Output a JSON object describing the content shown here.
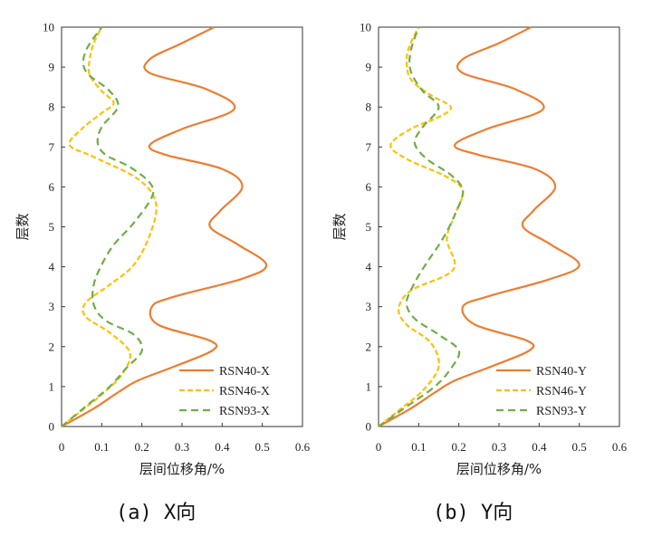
{
  "colors": {
    "RSN40": "#ed7d31",
    "RSN46": "#ffc000",
    "RSN93": "#70ad47",
    "axis": "#333333"
  },
  "captions": {
    "a": "(a) X向",
    "b": "(b) Y向"
  },
  "chart_data": [
    {
      "type": "line",
      "panel": "a",
      "xlabel": "层间位移角/%",
      "ylabel": "层数",
      "xlim": [
        0,
        0.6
      ],
      "ylim": [
        0,
        10
      ],
      "xticks": [
        0,
        0.1,
        0.2,
        0.3,
        0.4,
        0.5,
        0.6
      ],
      "yticks": [
        0,
        1,
        2,
        3,
        4,
        5,
        6,
        7,
        8,
        9,
        10
      ],
      "grid": false,
      "legend": "bottom-right",
      "series": [
        {
          "name": "RSN40-X",
          "color_key": "RSN40",
          "dash": "solid",
          "points": [
            [
              0,
              0
            ],
            [
              0.08,
              0.45
            ],
            [
              0.14,
              0.85
            ],
            [
              0.19,
              1.15
            ],
            [
              0.28,
              1.5
            ],
            [
              0.375,
              1.9
            ],
            [
              0.37,
              2.15
            ],
            [
              0.24,
              2.55
            ],
            [
              0.225,
              3.0
            ],
            [
              0.28,
              3.25
            ],
            [
              0.45,
              3.7
            ],
            [
              0.51,
              4.05
            ],
            [
              0.44,
              4.55
            ],
            [
              0.37,
              5.0
            ],
            [
              0.395,
              5.4
            ],
            [
              0.45,
              6.0
            ],
            [
              0.4,
              6.45
            ],
            [
              0.26,
              6.8
            ],
            [
              0.22,
              7.05
            ],
            [
              0.3,
              7.45
            ],
            [
              0.43,
              7.95
            ],
            [
              0.36,
              8.45
            ],
            [
              0.22,
              8.85
            ],
            [
              0.22,
              9.2
            ],
            [
              0.3,
              9.6
            ],
            [
              0.38,
              10.0
            ]
          ]
        },
        {
          "name": "RSN46-X",
          "color_key": "RSN46",
          "dash": "dash",
          "points": [
            [
              0,
              0
            ],
            [
              0.05,
              0.4
            ],
            [
              0.1,
              0.8
            ],
            [
              0.15,
              1.3
            ],
            [
              0.17,
              1.85
            ],
            [
              0.12,
              2.35
            ],
            [
              0.06,
              2.75
            ],
            [
              0.06,
              3.1
            ],
            [
              0.12,
              3.55
            ],
            [
              0.18,
              4.05
            ],
            [
              0.22,
              4.8
            ],
            [
              0.235,
              5.6
            ],
            [
              0.19,
              6.2
            ],
            [
              0.08,
              6.75
            ],
            [
              0.02,
              7.05
            ],
            [
              0.05,
              7.45
            ],
            [
              0.1,
              7.85
            ],
            [
              0.13,
              8.1
            ],
            [
              0.1,
              8.4
            ],
            [
              0.07,
              8.8
            ],
            [
              0.07,
              9.2
            ],
            [
              0.08,
              9.6
            ],
            [
              0.1,
              10.0
            ]
          ]
        },
        {
          "name": "RSN93-X",
          "color_key": "RSN93",
          "dash": "longdash",
          "points": [
            [
              0,
              0
            ],
            [
              0.06,
              0.5
            ],
            [
              0.12,
              1.0
            ],
            [
              0.16,
              1.45
            ],
            [
              0.2,
              1.9
            ],
            [
              0.18,
              2.3
            ],
            [
              0.11,
              2.65
            ],
            [
              0.08,
              3.05
            ],
            [
              0.08,
              3.55
            ],
            [
              0.1,
              4.05
            ],
            [
              0.13,
              4.55
            ],
            [
              0.18,
              5.1
            ],
            [
              0.225,
              5.75
            ],
            [
              0.22,
              6.1
            ],
            [
              0.17,
              6.5
            ],
            [
              0.11,
              6.8
            ],
            [
              0.09,
              7.1
            ],
            [
              0.1,
              7.5
            ],
            [
              0.14,
              8.0
            ],
            [
              0.12,
              8.4
            ],
            [
              0.06,
              8.9
            ],
            [
              0.06,
              9.4
            ],
            [
              0.1,
              10.0
            ]
          ]
        }
      ]
    },
    {
      "type": "line",
      "panel": "b",
      "xlabel": "层间位移角/%",
      "ylabel": "层数",
      "xlim": [
        0,
        0.6
      ],
      "ylim": [
        0,
        10
      ],
      "xticks": [
        0,
        0.1,
        0.2,
        0.3,
        0.4,
        0.5,
        0.6
      ],
      "yticks": [
        0,
        1,
        2,
        3,
        4,
        5,
        6,
        7,
        8,
        9,
        10
      ],
      "grid": false,
      "legend": "bottom-right",
      "series": [
        {
          "name": "RSN40-Y",
          "color_key": "RSN40",
          "dash": "solid",
          "points": [
            [
              0,
              0
            ],
            [
              0.08,
              0.45
            ],
            [
              0.14,
              0.85
            ],
            [
              0.19,
              1.15
            ],
            [
              0.28,
              1.5
            ],
            [
              0.375,
              1.9
            ],
            [
              0.37,
              2.15
            ],
            [
              0.24,
              2.55
            ],
            [
              0.21,
              3.0
            ],
            [
              0.27,
              3.25
            ],
            [
              0.43,
              3.7
            ],
            [
              0.5,
              4.05
            ],
            [
              0.43,
              4.55
            ],
            [
              0.36,
              5.0
            ],
            [
              0.385,
              5.4
            ],
            [
              0.44,
              6.0
            ],
            [
              0.39,
              6.45
            ],
            [
              0.25,
              6.8
            ],
            [
              0.19,
              7.05
            ],
            [
              0.27,
              7.45
            ],
            [
              0.41,
              7.95
            ],
            [
              0.34,
              8.45
            ],
            [
              0.21,
              8.85
            ],
            [
              0.21,
              9.2
            ],
            [
              0.3,
              9.6
            ],
            [
              0.38,
              10.0
            ]
          ]
        },
        {
          "name": "RSN46-Y",
          "color_key": "RSN46",
          "dash": "dash",
          "points": [
            [
              0,
              0
            ],
            [
              0.05,
              0.4
            ],
            [
              0.11,
              0.9
            ],
            [
              0.15,
              1.5
            ],
            [
              0.13,
              2.1
            ],
            [
              0.07,
              2.55
            ],
            [
              0.05,
              2.95
            ],
            [
              0.08,
              3.4
            ],
            [
              0.17,
              3.8
            ],
            [
              0.19,
              4.1
            ],
            [
              0.17,
              4.7
            ],
            [
              0.19,
              5.3
            ],
            [
              0.21,
              5.9
            ],
            [
              0.17,
              6.25
            ],
            [
              0.07,
              6.7
            ],
            [
              0.03,
              7.05
            ],
            [
              0.08,
              7.45
            ],
            [
              0.15,
              7.75
            ],
            [
              0.18,
              8.0
            ],
            [
              0.13,
              8.3
            ],
            [
              0.08,
              8.7
            ],
            [
              0.07,
              9.2
            ],
            [
              0.08,
              9.6
            ],
            [
              0.1,
              10.0
            ]
          ]
        },
        {
          "name": "RSN93-Y",
          "color_key": "RSN93",
          "dash": "longdash",
          "points": [
            [
              0,
              0
            ],
            [
              0.07,
              0.5
            ],
            [
              0.14,
              1.0
            ],
            [
              0.18,
              1.45
            ],
            [
              0.2,
              1.9
            ],
            [
              0.15,
              2.3
            ],
            [
              0.09,
              2.7
            ],
            [
              0.07,
              3.1
            ],
            [
              0.09,
              3.6
            ],
            [
              0.12,
              4.1
            ],
            [
              0.16,
              4.7
            ],
            [
              0.19,
              5.3
            ],
            [
              0.21,
              5.9
            ],
            [
              0.18,
              6.3
            ],
            [
              0.12,
              6.7
            ],
            [
              0.09,
              7.1
            ],
            [
              0.11,
              7.5
            ],
            [
              0.15,
              8.0
            ],
            [
              0.11,
              8.4
            ],
            [
              0.08,
              8.9
            ],
            [
              0.08,
              9.4
            ],
            [
              0.1,
              10.0
            ]
          ]
        }
      ]
    }
  ]
}
